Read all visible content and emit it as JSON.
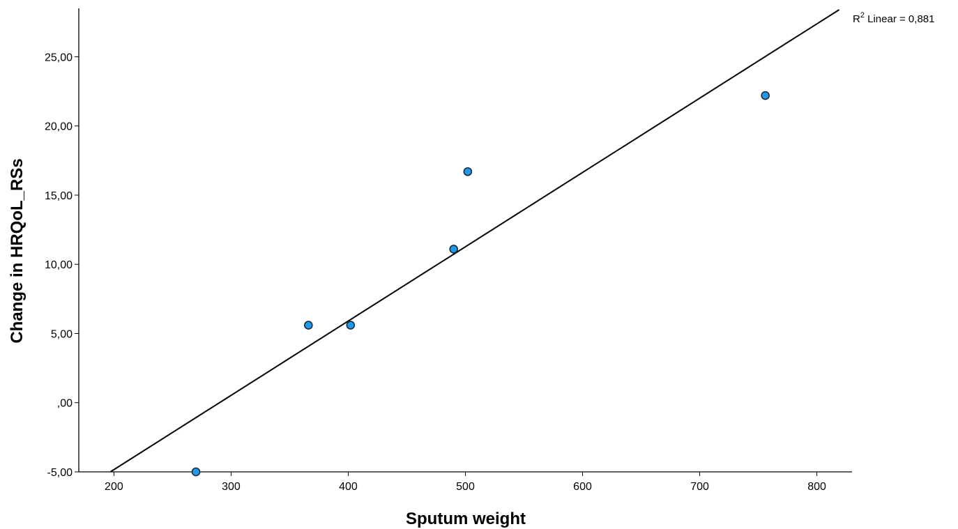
{
  "chart_data": {
    "type": "scatter",
    "xlabel": "Sputum weight",
    "ylabel": "Change in HRQoL_RSs",
    "xlim": [
      170,
      830
    ],
    "ylim": [
      -5,
      28.5
    ],
    "x_ticks": [
      200,
      300,
      400,
      500,
      600,
      700,
      800
    ],
    "x_tick_labels": [
      "200",
      "300",
      "400",
      "500",
      "600",
      "700",
      "800"
    ],
    "y_ticks": [
      -5,
      0,
      5,
      10,
      15,
      20,
      25
    ],
    "y_tick_labels": [
      "-5,00",
      ",00",
      "5,00",
      "10,00",
      "15,00",
      "20,00",
      "25,00"
    ],
    "grid": false,
    "series": [
      {
        "points": [
          {
            "x": 270,
            "y": -5.0
          },
          {
            "x": 366,
            "y": 5.6
          },
          {
            "x": 402,
            "y": 5.6
          },
          {
            "x": 490,
            "y": 11.1
          },
          {
            "x": 502,
            "y": 16.7
          },
          {
            "x": 756,
            "y": 22.2
          }
        ],
        "color": "#1f9ae8"
      }
    ],
    "fit_line": {
      "type": "linear",
      "label_prefix": "R",
      "label_superscript": "2",
      "label_suffix": " Linear = 0,881",
      "points": [
        {
          "x": 197,
          "y": -5.0
        },
        {
          "x": 819,
          "y": 28.4
        }
      ]
    }
  }
}
